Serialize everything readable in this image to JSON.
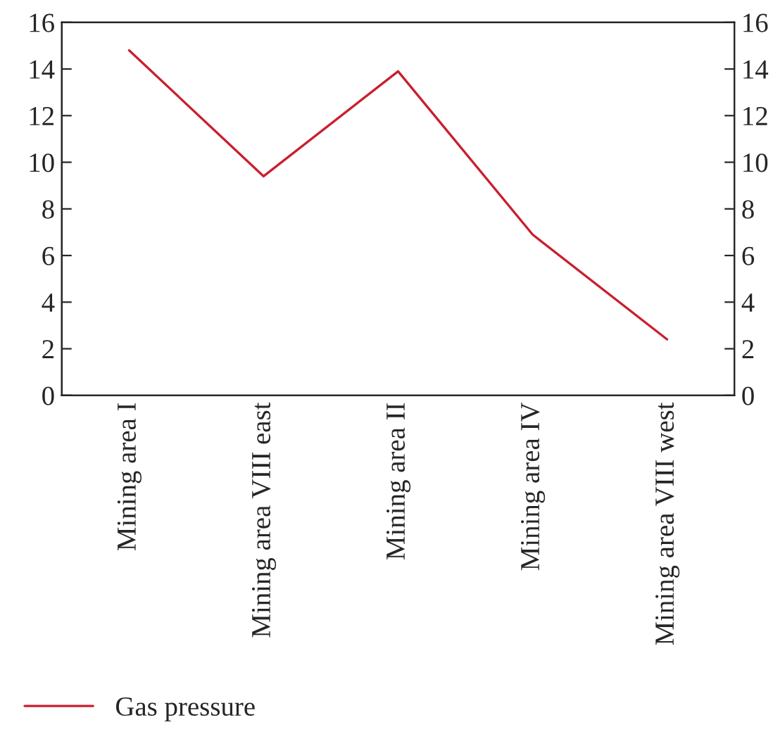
{
  "chart_data": {
    "type": "line",
    "categories": [
      "Mining area I",
      "Mining area VIII east",
      "Mining area II",
      "Mining area IV",
      "Mining area VIII west"
    ],
    "series": [
      {
        "name": "Gas pressure",
        "color": "#c8202f",
        "values": [
          14.8,
          9.4,
          13.9,
          6.9,
          2.4
        ]
      }
    ],
    "ylim": [
      0,
      16
    ],
    "yticks": [
      0,
      2,
      4,
      6,
      8,
      10,
      12,
      14,
      16
    ],
    "y2lim": [
      0,
      16
    ],
    "y2ticks": [
      0,
      2,
      4,
      6,
      8,
      10,
      12,
      14,
      16
    ],
    "grid": false,
    "legend": "bottom left",
    "marker": "none",
    "line_style": "solid"
  }
}
